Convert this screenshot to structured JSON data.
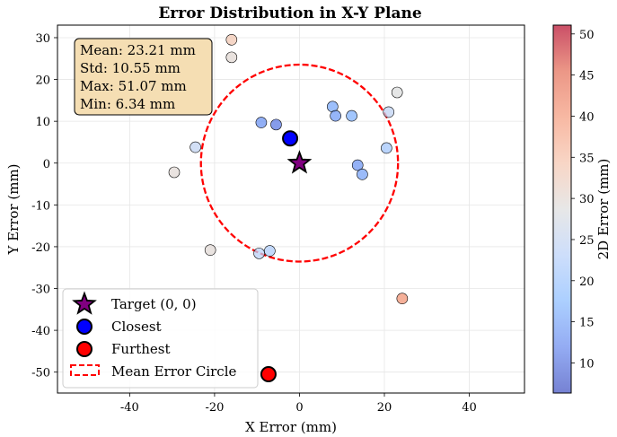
{
  "chart_data": {
    "type": "scatter",
    "title": "Error Distribution in X-Y Plane",
    "xlabel": "X Error (mm)",
    "ylabel": "Y Error (mm)",
    "xlim": [
      -57,
      53
    ],
    "ylim": [
      -55,
      33
    ],
    "xticks": [
      -40,
      -20,
      0,
      20,
      40
    ],
    "yticks": [
      -50,
      -40,
      -30,
      -20,
      -10,
      0,
      10,
      20,
      30
    ],
    "grid": true,
    "stats_box": [
      "Mean: 23.21 mm",
      "Std: 10.55 mm",
      "Max: 51.07 mm",
      "Min: 6.34 mm"
    ],
    "colorbar": {
      "label": "2D Error (mm)",
      "range": [
        6.34,
        51.07
      ],
      "ticks": [
        10,
        15,
        20,
        25,
        30,
        35,
        40,
        45,
        50
      ],
      "colormap": "coolwarm",
      "stops": [
        "#3b4cc0",
        "#6688ee",
        "#88bbff",
        "#b8d0f9",
        "#dddddd",
        "#f5c4ad",
        "#f49a7b",
        "#e36a53",
        "#b40426"
      ]
    },
    "points": [
      {
        "x": -16,
        "y": 29.5,
        "error": 33.5
      },
      {
        "x": -16,
        "y": 25.3,
        "error": 29.9
      },
      {
        "x": -9,
        "y": 9.7,
        "error": 13.3
      },
      {
        "x": -5.5,
        "y": 9.2,
        "error": 10.7
      },
      {
        "x": -24.5,
        "y": 3.8,
        "error": 24.8
      },
      {
        "x": -29.5,
        "y": -2.2,
        "error": 29.6
      },
      {
        "x": -21,
        "y": -20.8,
        "error": 29.6
      },
      {
        "x": -9.5,
        "y": -21.6,
        "error": 23.6
      },
      {
        "x": -7,
        "y": -21,
        "error": 22.1
      },
      {
        "x": 7.8,
        "y": 13.5,
        "error": 15.6
      },
      {
        "x": 8.5,
        "y": 11.3,
        "error": 14.1
      },
      {
        "x": 12.3,
        "y": 11.3,
        "error": 16.7
      },
      {
        "x": 21,
        "y": 12.2,
        "error": 24.3
      },
      {
        "x": 23,
        "y": 16.9,
        "error": 28.5
      },
      {
        "x": 20.5,
        "y": 3.6,
        "error": 20.8
      },
      {
        "x": 13.7,
        "y": -0.5,
        "error": 13.7
      },
      {
        "x": 14.8,
        "y": -2.7,
        "error": 15.0
      },
      {
        "x": 24.2,
        "y": -32.4,
        "error": 40.4
      }
    ],
    "target": {
      "x": 0,
      "y": 0,
      "label": "Target (0, 0)"
    },
    "closest": {
      "x": -2.2,
      "y": 5.9,
      "label": "Closest"
    },
    "furthest": {
      "x": -7.3,
      "y": -50.5,
      "label": "Furthest"
    },
    "mean_circle": {
      "radius": 23.21,
      "label": "Mean Error Circle"
    }
  }
}
